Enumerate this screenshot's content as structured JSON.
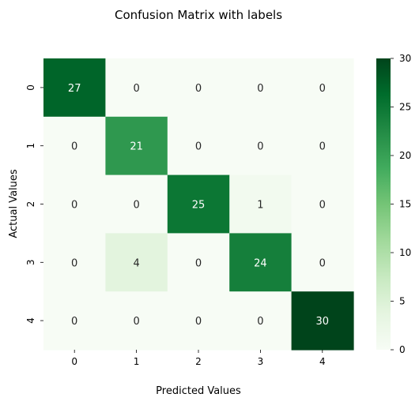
{
  "chart_data": {
    "type": "heatmap",
    "title": "Confusion Matrix with labels",
    "xlabel": "Predicted Values",
    "ylabel": "Actual Values",
    "x_categories": [
      "0",
      "1",
      "2",
      "3",
      "4"
    ],
    "y_categories": [
      "0",
      "1",
      "2",
      "3",
      "4"
    ],
    "values": [
      [
        27,
        0,
        0,
        0,
        0
      ],
      [
        0,
        21,
        0,
        0,
        0
      ],
      [
        0,
        0,
        25,
        1,
        0
      ],
      [
        0,
        4,
        0,
        24,
        0
      ],
      [
        0,
        0,
        0,
        0,
        30
      ]
    ],
    "colormap": "Greens",
    "color_range": [
      0,
      30
    ],
    "colorbar_ticks": [
      0,
      5,
      10,
      15,
      20,
      25,
      30
    ],
    "annotations": true
  }
}
